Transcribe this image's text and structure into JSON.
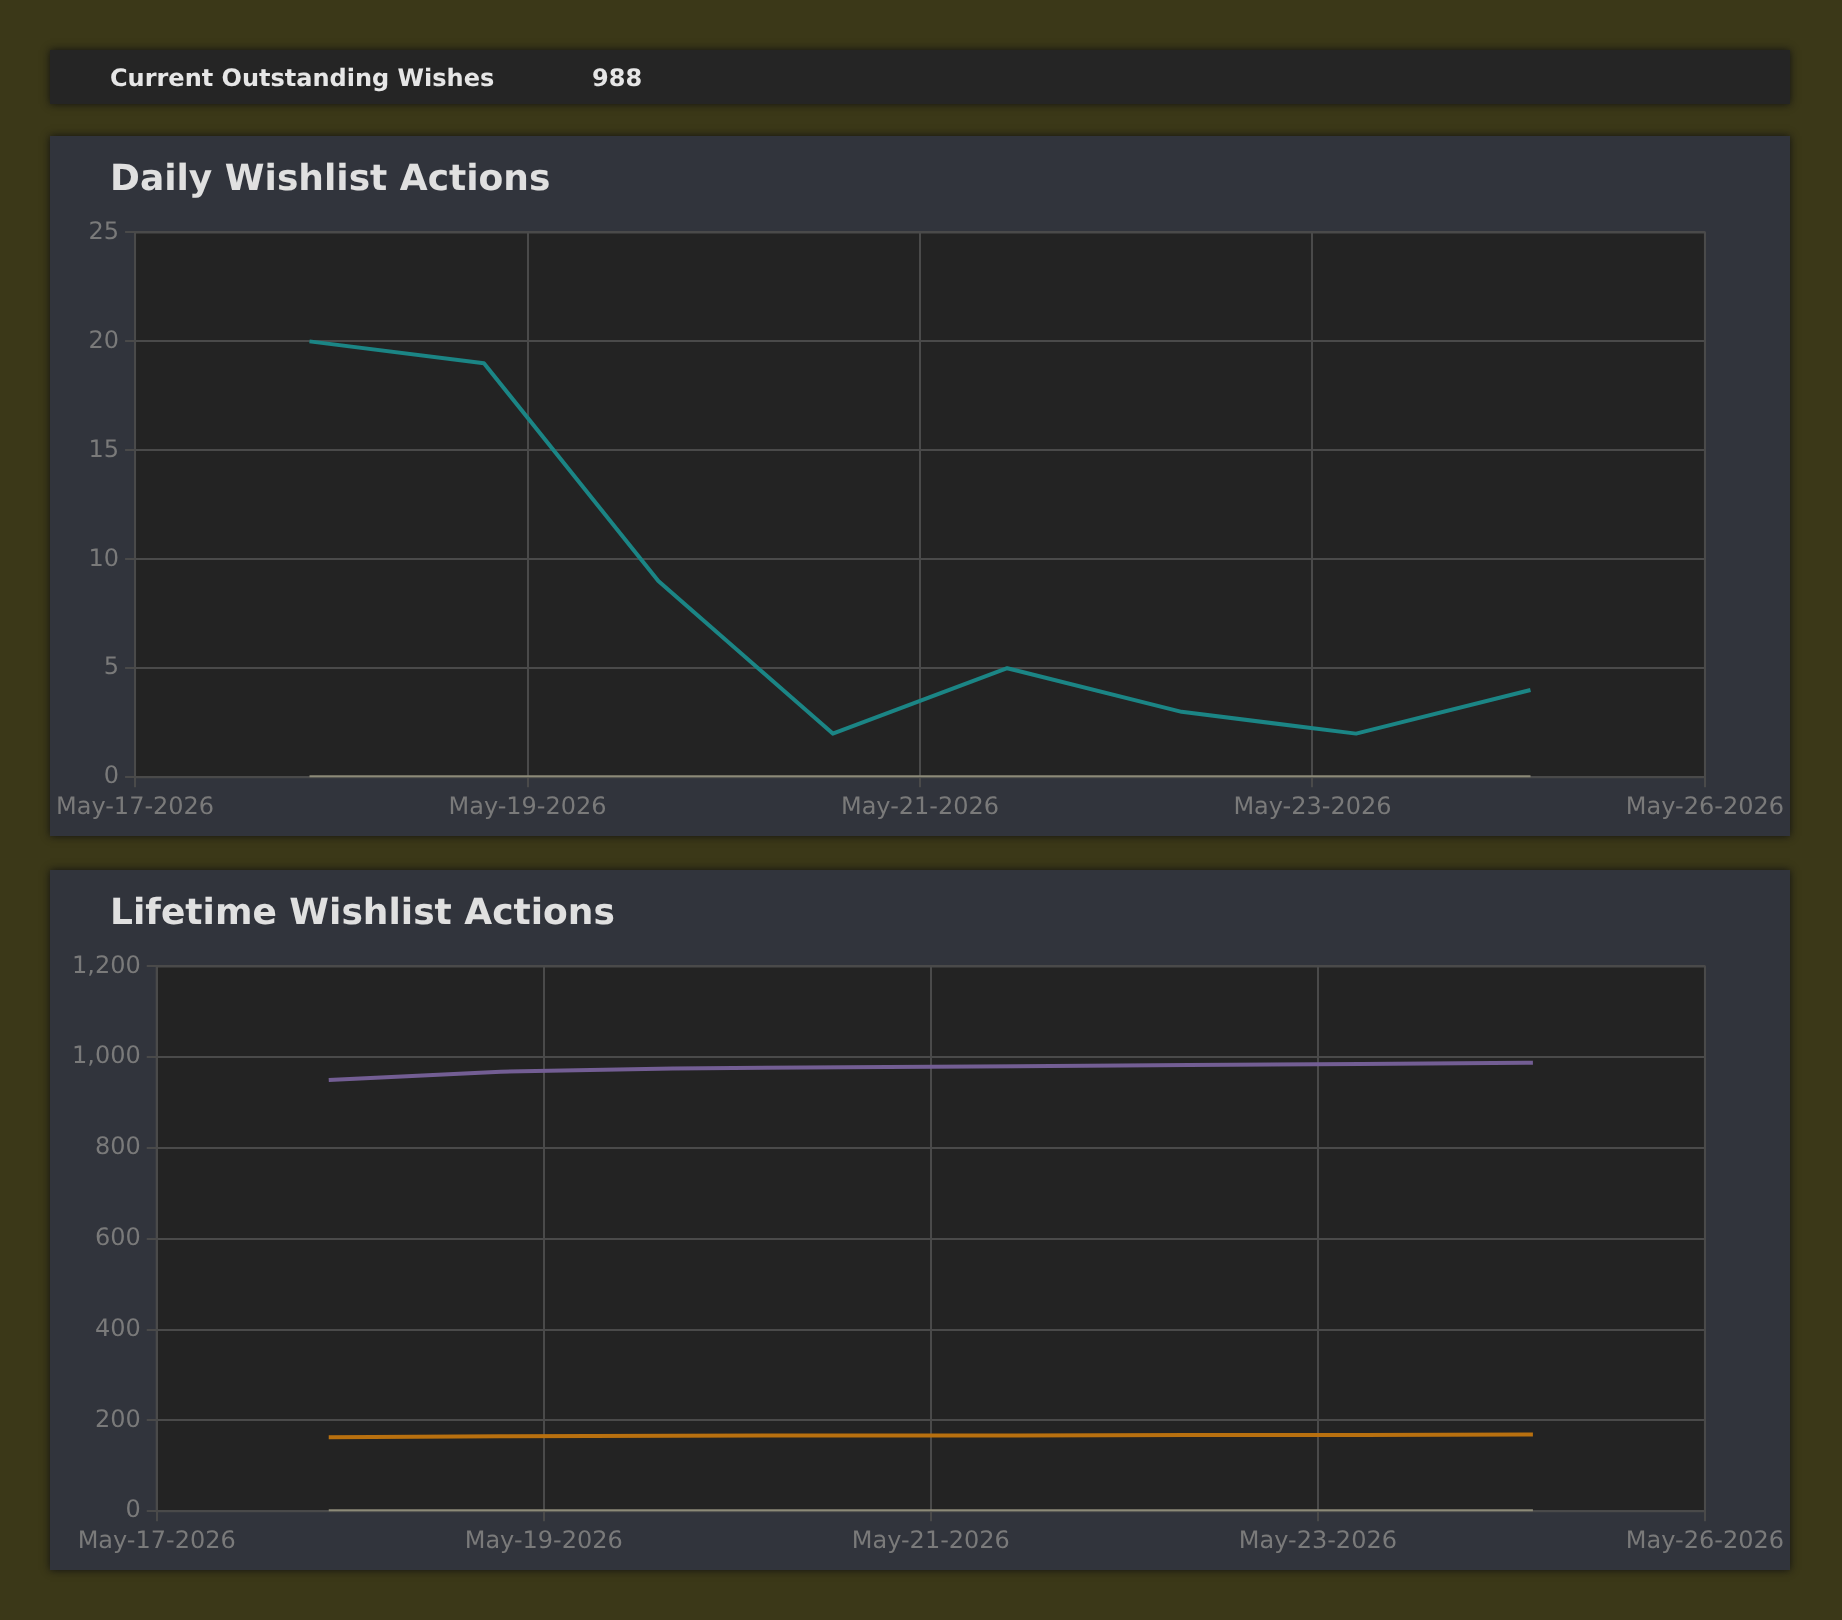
{
  "chart_data": [
    {
      "type": "other",
      "title": "Current Outstanding Wishes",
      "annotations": [
        "988"
      ]
    },
    {
      "type": "line",
      "title": "Daily Wishlist Actions",
      "x": [
        "2026-05-18",
        "2026-05-19",
        "2026-05-20",
        "2026-05-21",
        "2026-05-22",
        "2026-05-23",
        "2026-05-24",
        "2026-05-25"
      ],
      "series": [
        {
          "color": "#8c8a78",
          "values": [
            0,
            0,
            0,
            0,
            0,
            0,
            0,
            0
          ]
        },
        {
          "color": "#1b8585",
          "values": [
            20,
            19,
            9,
            2,
            5,
            3,
            2,
            4
          ]
        }
      ],
      "xlim": [
        "2026-05-17",
        "2026-05-26"
      ],
      "xticks": [
        {
          "value": "2026-05-17",
          "label": "May-17-2026"
        },
        {
          "value": "2026-05-19T06:00",
          "label": "May-19-2026"
        },
        {
          "value": "2026-05-21T12:00",
          "label": "May-21-2026"
        },
        {
          "value": "2026-05-23T18:00",
          "label": "May-23-2026"
        },
        {
          "value": "2026-05-26",
          "label": "May-26-2026"
        }
      ],
      "ylim": [
        0,
        25
      ],
      "yticks": [
        0,
        5,
        10,
        15,
        20,
        25
      ],
      "grid": true,
      "legend": false,
      "marker": "none",
      "line_style": "solid"
    },
    {
      "type": "line",
      "title": "Lifetime Wishlist Actions",
      "x": [
        "2026-05-18",
        "2026-05-19",
        "2026-05-20",
        "2026-05-21",
        "2026-05-22",
        "2026-05-23",
        "2026-05-24",
        "2026-05-25"
      ],
      "series": [
        {
          "color": "#8c8a78",
          "values": [
            0,
            0,
            0,
            0,
            0,
            0,
            0,
            0
          ]
        },
        {
          "color": "#b8700f",
          "values": [
            163,
            165,
            166,
            167,
            167,
            168,
            168,
            169
          ]
        },
        {
          "color": "#735e94",
          "values": [
            950,
            968,
            975,
            978,
            980,
            983,
            985,
            988
          ]
        }
      ],
      "xlim": [
        "2026-05-17",
        "2026-05-26"
      ],
      "xticks": [
        {
          "value": "2026-05-17",
          "label": "May-17-2026"
        },
        {
          "value": "2026-05-19T06:00",
          "label": "May-19-2026"
        },
        {
          "value": "2026-05-21T12:00",
          "label": "May-21-2026"
        },
        {
          "value": "2026-05-23T18:00",
          "label": "May-23-2026"
        },
        {
          "value": "2026-05-26",
          "label": "May-26-2026"
        }
      ],
      "ylim": [
        0,
        1200
      ],
      "yticks": [
        0,
        200,
        400,
        600,
        800,
        {
          "value": 1000,
          "label": "1,000"
        },
        {
          "value": 1200,
          "label": "1,200"
        }
      ],
      "grid": true,
      "legend": false,
      "marker": "none",
      "line_style": "solid"
    }
  ]
}
